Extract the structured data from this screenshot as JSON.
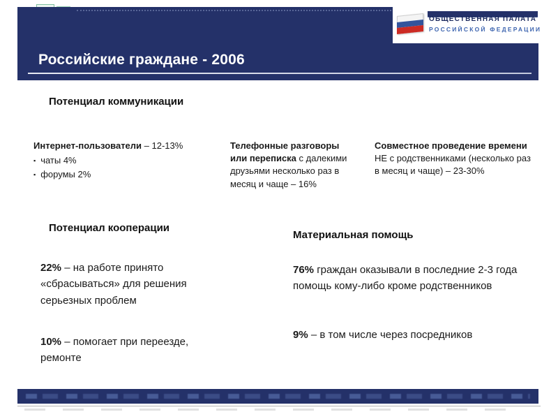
{
  "slide": {
    "title": "Российские граждане - 2006"
  },
  "logo": {
    "line1": "ОБЩЕСТВЕННАЯ ПАЛАТА",
    "line2": "РОССИЙСКОЙ ФЕДЕРАЦИИ"
  },
  "communication": {
    "heading": "Потенциал коммуникации",
    "internet": {
      "lead": "Интернет-пользователи",
      "rest": " – 12-13%",
      "bullet_char": "▪",
      "bullets": [
        "чаты 4%",
        "форумы 2%"
      ]
    },
    "phone": {
      "lead": "Телефонные разговоры или переписка",
      "rest": " с далекими друзьями несколько раз в месяц и чаще – 16%"
    },
    "joint": {
      "lead": "Совместное проведение времени",
      "rest": " НЕ с родственниками (несколько раз в месяц и чаще) – 23-30%"
    }
  },
  "cooperation": {
    "heading": "Потенциал кооперации",
    "p1": {
      "lead": "22%",
      "rest": " – на работе принято «сбрасываться» для решения серьезных проблем"
    },
    "p2": {
      "lead": "10%",
      "rest": " – помогает при переезде, ремонте"
    }
  },
  "material": {
    "heading": "Материальная помощь",
    "p1": {
      "lead": "76%",
      "rest": " граждан оказывали в последние 2-3 года помощь кому-либо кроме родственников"
    },
    "p2": {
      "lead": "9%",
      "rest": " – в том числе через посредников"
    }
  }
}
